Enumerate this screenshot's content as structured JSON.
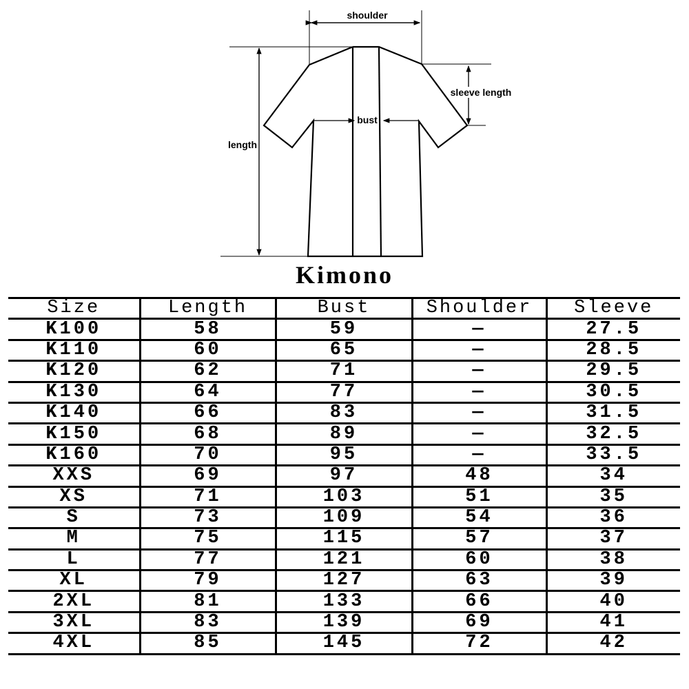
{
  "diagram": {
    "labels": {
      "shoulder": "shoulder",
      "sleeve_length": "sleeve length",
      "bust": "bust",
      "length": "length"
    },
    "title": "Kimono"
  },
  "table": {
    "headers": [
      "Size",
      "Length",
      "Bust",
      "Shoulder",
      "Sleeve"
    ],
    "rows": [
      [
        "K100",
        "58",
        "59",
        "—",
        "27.5"
      ],
      [
        "K110",
        "60",
        "65",
        "—",
        "28.5"
      ],
      [
        "K120",
        "62",
        "71",
        "—",
        "29.5"
      ],
      [
        "K130",
        "64",
        "77",
        "—",
        "30.5"
      ],
      [
        "K140",
        "66",
        "83",
        "—",
        "31.5"
      ],
      [
        "K150",
        "68",
        "89",
        "—",
        "32.5"
      ],
      [
        "K160",
        "70",
        "95",
        "—",
        "33.5"
      ],
      [
        "XXS",
        "69",
        "97",
        "48",
        "34"
      ],
      [
        "XS",
        "71",
        "103",
        "51",
        "35"
      ],
      [
        "S",
        "73",
        "109",
        "54",
        "36"
      ],
      [
        "M",
        "75",
        "115",
        "57",
        "37"
      ],
      [
        "L",
        "77",
        "121",
        "60",
        "38"
      ],
      [
        "XL",
        "79",
        "127",
        "63",
        "39"
      ],
      [
        "2XL",
        "81",
        "133",
        "66",
        "40"
      ],
      [
        "3XL",
        "83",
        "139",
        "69",
        "41"
      ],
      [
        "4XL",
        "85",
        "145",
        "72",
        "42"
      ]
    ]
  }
}
